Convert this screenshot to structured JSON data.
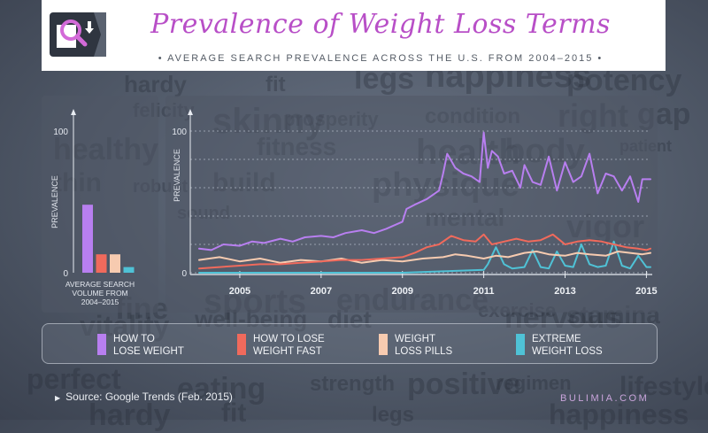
{
  "header": {
    "title": "Prevalence of Weight Loss Terms",
    "subtitle": "• AVERAGE SEARCH PREVALENCE ACROSS THE U.S. FROM 2004–2015 •"
  },
  "background_words": [
    "lifestyle",
    "hardy",
    "fit",
    "legs",
    "happiness",
    "potency",
    "felicity",
    "skinny",
    "prosperity",
    "condition",
    "right",
    "gap",
    "healthy",
    "fitness",
    "health",
    "body",
    "patient",
    "thin",
    "robust",
    "build",
    "physique",
    "sound",
    "mental",
    "vigor",
    "fine",
    "sports",
    "endurance",
    "exercise",
    "stamina",
    "vitality",
    "well-being",
    "diet",
    "nervous",
    "perfect",
    "eating",
    "strength",
    "positive",
    "regimen"
  ],
  "colors": {
    "lose_weight": "#b87ff0",
    "lose_weight_fast": "#f06a5c",
    "weight_loss_pills": "#f7cbb0",
    "extreme_weight_loss": "#4fc2d6"
  },
  "bar_panel": {
    "ytick_top": "100",
    "ytick_bottom": "0",
    "ylabel": "PREVALENCE",
    "caption": "AVERAGE SEARCH VOLUME FROM 2004–2015"
  },
  "line_panel": {
    "ytick_top": "100",
    "ytick_bottom": "0",
    "ylabel": "PREVALENCE"
  },
  "legend": [
    {
      "label": "HOW TO\nLOSE WEIGHT",
      "color": "#b87ff0"
    },
    {
      "label": "HOW TO LOSE\nWEIGHT FAST",
      "color": "#f06a5c"
    },
    {
      "label": "WEIGHT\nLOSS PILLS",
      "color": "#f7cbb0"
    },
    {
      "label": "EXTREME\nWEIGHT LOSS",
      "color": "#4fc2d6"
    }
  ],
  "footer": {
    "source": "Source: Google Trends (Feb. 2015)",
    "brand": "BULIMIA.COM"
  },
  "chart_data": [
    {
      "type": "bar",
      "categories": [
        "How to lose weight",
        "How to lose weight fast",
        "Weight loss pills",
        "Extreme weight loss"
      ],
      "values": [
        48,
        13,
        13,
        4
      ],
      "ylim": [
        0,
        100
      ],
      "ylabel": "PREVALENCE",
      "xlabel": "AVERAGE SEARCH VOLUME FROM 2004–2015",
      "colors": [
        "#b87ff0",
        "#f06a5c",
        "#f7cbb0",
        "#4fc2d6"
      ]
    },
    {
      "type": "line",
      "ylim": [
        0,
        100
      ],
      "ylabel": "PREVALENCE",
      "x_ticks": [
        "2005",
        "2007",
        "2009",
        "2011",
        "2013",
        "2015"
      ],
      "xlim": [
        2004,
        2015.1
      ],
      "grid": true,
      "series": [
        {
          "name": "How to lose weight",
          "color": "#b87ff0",
          "x": [
            2004,
            2004.3,
            2004.6,
            2005,
            2005.3,
            2005.6,
            2006,
            2006.3,
            2006.6,
            2007,
            2007.3,
            2007.6,
            2008,
            2008.3,
            2008.6,
            2009,
            2009.1,
            2009.3,
            2009.6,
            2009.9,
            2010,
            2010.1,
            2010.3,
            2010.5,
            2010.7,
            2010.9,
            2011,
            2011.1,
            2011.2,
            2011.35,
            2011.5,
            2011.7,
            2011.9,
            2012,
            2012.2,
            2012.4,
            2012.6,
            2012.8,
            2013,
            2013.2,
            2013.4,
            2013.6,
            2013.8,
            2014,
            2014.2,
            2014.4,
            2014.6,
            2014.8,
            2014.9,
            2015.1
          ],
          "y": [
            17,
            16,
            20,
            19,
            22,
            21,
            24,
            22,
            25,
            26,
            25,
            28,
            30,
            28,
            31,
            36,
            45,
            48,
            52,
            58,
            70,
            84,
            74,
            70,
            68,
            64,
            99,
            74,
            86,
            82,
            70,
            72,
            60,
            76,
            64,
            62,
            82,
            58,
            78,
            64,
            68,
            84,
            56,
            70,
            68,
            58,
            68,
            50,
            66,
            66
          ]
        },
        {
          "name": "How to lose weight fast",
          "color": "#f06a5c",
          "x": [
            2004,
            2004.5,
            2005,
            2005.5,
            2006,
            2006.5,
            2007,
            2007.5,
            2008,
            2008.5,
            2009,
            2009.3,
            2009.6,
            2009.9,
            2010.2,
            2010.5,
            2010.8,
            2011,
            2011.2,
            2011.5,
            2011.8,
            2012.1,
            2012.4,
            2012.7,
            2013,
            2013.3,
            2013.6,
            2013.9,
            2014.2,
            2014.5,
            2014.8,
            2015,
            2015.1
          ],
          "y": [
            3,
            4,
            5,
            6,
            6,
            7,
            8,
            9,
            9,
            10,
            11,
            14,
            18,
            20,
            26,
            23,
            22,
            27,
            20,
            22,
            24,
            22,
            23,
            27,
            20,
            22,
            23,
            22,
            20,
            18,
            17,
            16,
            17
          ]
        },
        {
          "name": "Weight loss pills",
          "color": "#f7cbb0",
          "x": [
            2004,
            2004.5,
            2005,
            2005.5,
            2006,
            2006.5,
            2007,
            2007.5,
            2008,
            2008.5,
            2009,
            2009.5,
            2010,
            2010.3,
            2010.6,
            2011,
            2011.3,
            2011.6,
            2012,
            2012.3,
            2012.6,
            2013,
            2013.3,
            2013.6,
            2014,
            2014.3,
            2014.6,
            2014.9,
            2015.1
          ],
          "y": [
            9,
            11,
            8,
            10,
            7,
            9,
            8,
            10,
            7,
            9,
            8,
            10,
            11,
            13,
            12,
            10,
            12,
            11,
            14,
            15,
            13,
            12,
            14,
            13,
            12,
            15,
            14,
            13,
            14
          ]
        },
        {
          "name": "Extreme weight loss",
          "color": "#4fc2d6",
          "x": [
            2004,
            2005,
            2006,
            2007,
            2008,
            2009,
            2010,
            2011,
            2011.1,
            2011.3,
            2011.5,
            2011.7,
            2012,
            2012.2,
            2012.4,
            2012.6,
            2012.8,
            2013,
            2013.2,
            2013.4,
            2013.6,
            2013.8,
            2014,
            2014.2,
            2014.4,
            2014.6,
            2014.8,
            2015,
            2015.1
          ],
          "y": [
            0,
            0,
            0,
            0,
            0,
            0,
            1,
            2,
            6,
            18,
            6,
            3,
            4,
            16,
            4,
            3,
            15,
            5,
            4,
            20,
            6,
            4,
            5,
            22,
            5,
            3,
            12,
            4,
            4
          ]
        }
      ]
    }
  ]
}
